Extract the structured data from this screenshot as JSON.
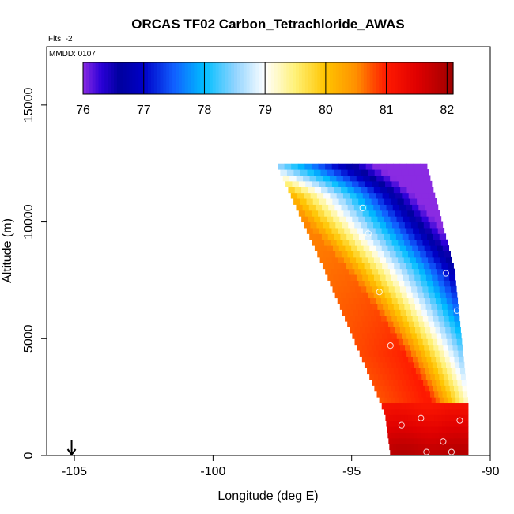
{
  "chart_data": {
    "type": "heatmap",
    "title": "ORCAS TF02 Carbon_Tetrachloride_AWAS",
    "flights_label": "Flts: -2",
    "date_label": "MMDD: 0107",
    "xlabel": "Longitude (deg E)",
    "ylabel": "Altitude (m)",
    "xlim": [
      -106,
      -90
    ],
    "ylim": [
      0,
      17500
    ],
    "x_ticks": [
      -105,
      -100,
      -95,
      -90
    ],
    "x_tick_labels": [
      "-105",
      "-100",
      "-95",
      "-90"
    ],
    "y_ticks": [
      0,
      5000,
      10000,
      15000
    ],
    "y_tick_labels": [
      "0",
      "5000",
      "10000",
      "15000"
    ],
    "colorbar": {
      "min": 76,
      "max": 82.1,
      "ticks": [
        76,
        77,
        78,
        79,
        80,
        81,
        82
      ],
      "tick_labels": [
        "76",
        "77",
        "78",
        "79",
        "80",
        "81",
        "82"
      ],
      "stops": [
        {
          "v": 76.0,
          "c": "#8a2be2"
        },
        {
          "v": 76.3,
          "c": "#2a00d8"
        },
        {
          "v": 76.6,
          "c": "#00009e"
        },
        {
          "v": 77.0,
          "c": "#0000c8"
        },
        {
          "v": 77.5,
          "c": "#1060ff"
        },
        {
          "v": 78.0,
          "c": "#00bfff"
        },
        {
          "v": 78.5,
          "c": "#8fd3ff"
        },
        {
          "v": 79.0,
          "c": "#ffffff"
        },
        {
          "v": 79.5,
          "c": "#fff176"
        },
        {
          "v": 80.0,
          "c": "#ffc400"
        },
        {
          "v": 80.5,
          "c": "#ff9000"
        },
        {
          "v": 81.0,
          "c": "#ff1a00"
        },
        {
          "v": 81.5,
          "c": "#e00000"
        },
        {
          "v": 82.1,
          "c": "#9e0000"
        }
      ]
    },
    "field": {
      "top_edge_left": [
        -97.7,
        12450
      ],
      "top_edge_right": [
        -92.3,
        12450
      ],
      "left_edge": [
        [
          -97.7,
          12450
        ],
        [
          -96.0,
          8000
        ],
        [
          -93.8,
          1800
        ],
        [
          -93.6,
          0
        ]
      ],
      "right_edge": [
        [
          -92.3,
          12450
        ],
        [
          -91.3,
          8000
        ],
        [
          -90.8,
          2200
        ],
        [
          -90.8,
          0
        ]
      ]
    },
    "marker": {
      "x": -105.1,
      "type": "down-arrow"
    },
    "points": [
      {
        "x": -95.0,
        "y": 12700
      },
      {
        "x": -92.3,
        "y": 12700
      },
      {
        "x": -94.6,
        "y": 10600
      },
      {
        "x": -94.4,
        "y": 9500
      },
      {
        "x": -91.6,
        "y": 7800
      },
      {
        "x": -94.0,
        "y": 7000
      },
      {
        "x": -91.2,
        "y": 6200
      },
      {
        "x": -93.6,
        "y": 4700
      },
      {
        "x": -90.8,
        "y": 4400
      },
      {
        "x": -94.4,
        "y": 2500
      },
      {
        "x": -90.6,
        "y": 2000
      },
      {
        "x": -94.4,
        "y": 1100
      },
      {
        "x": -94.0,
        "y": 1000
      },
      {
        "x": -93.2,
        "y": 1300
      },
      {
        "x": -92.5,
        "y": 1600
      },
      {
        "x": -91.1,
        "y": 1500
      },
      {
        "x": -91.7,
        "y": 600
      },
      {
        "x": -94.3,
        "y": 150
      },
      {
        "x": -92.3,
        "y": 150
      },
      {
        "x": -91.4,
        "y": 150
      }
    ]
  }
}
